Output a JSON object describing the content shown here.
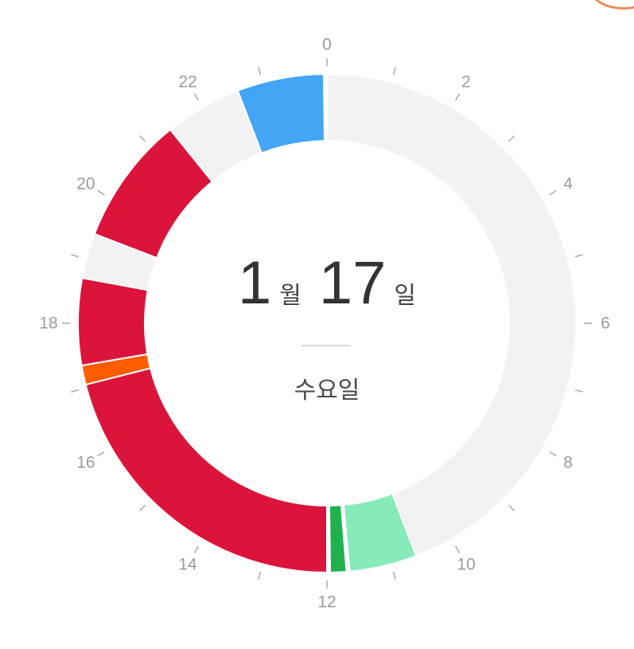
{
  "chart_data": {
    "type": "donut",
    "unit": "hour",
    "range": [
      0,
      24
    ],
    "center": {
      "month": "1",
      "month_unit": "월",
      "day": "17",
      "day_unit": "일",
      "weekday": "수요일"
    },
    "hour_labels": [
      "0",
      "2",
      "4",
      "6",
      "8",
      "10",
      "12",
      "14",
      "16",
      "18",
      "20",
      "22"
    ],
    "minor_ticks_every_hours": 1,
    "segments": [
      {
        "start": 0.0,
        "end": 10.6,
        "color": "#f2f2f2"
      },
      {
        "start": 10.6,
        "end": 11.65,
        "color": "#86eab9"
      },
      {
        "start": 11.7,
        "end": 11.95,
        "color": "#20b14f"
      },
      {
        "start": 12.0,
        "end": 17.05,
        "color": "#dc143c"
      },
      {
        "start": 17.05,
        "end": 17.35,
        "color": "#ff5c00"
      },
      {
        "start": 17.35,
        "end": 18.7,
        "color": "#dc143c"
      },
      {
        "start": 18.7,
        "end": 19.4,
        "color": "#f2f2f2"
      },
      {
        "start": 19.4,
        "end": 21.4,
        "color": "#dc143c"
      },
      {
        "start": 21.4,
        "end": 22.6,
        "color": "#f2f2f2"
      },
      {
        "start": 22.6,
        "end": 23.95,
        "color": "#42a5f5"
      }
    ]
  }
}
